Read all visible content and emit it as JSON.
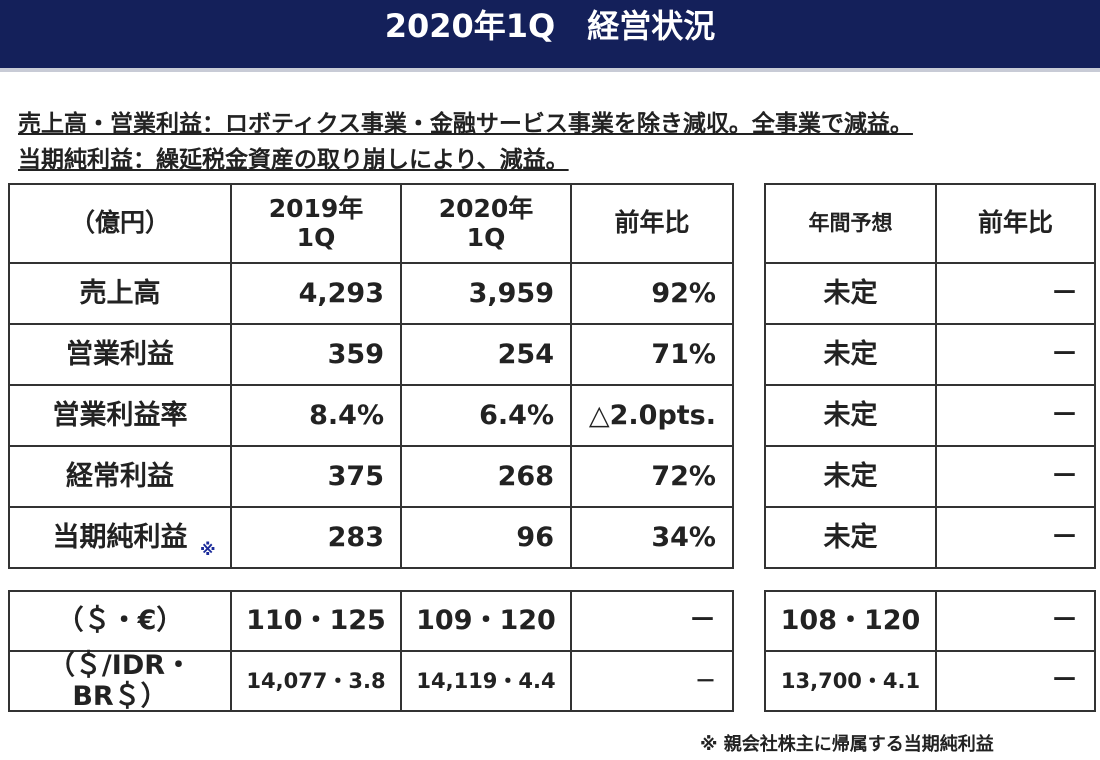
{
  "header": {
    "title": "2020年1Q　経営状況"
  },
  "summary": [
    "売上高・営業利益：ロボティクス事業・金融サービス事業を除き減収。全事業で減益。",
    "当期純利益：繰延税金資産の取り崩しにより、減益。"
  ],
  "main_table": {
    "columns": [
      "（億円）",
      "2019年\n1Q",
      "2020年\n1Q",
      "前年比"
    ],
    "rows": [
      [
        "売上高",
        "4,293",
        "3,959",
        "92%"
      ],
      [
        "営業利益",
        "359",
        "254",
        "71%"
      ],
      [
        "営業利益率",
        "8.4%",
        "6.4%",
        "△2.0pts."
      ],
      [
        "経常利益",
        "375",
        "268",
        "72%"
      ],
      [
        "当期純利益",
        "283",
        "96",
        "34%"
      ]
    ],
    "row_note_mark": "※"
  },
  "forecast_table": {
    "columns": [
      "年間予想",
      "前年比"
    ],
    "rows": [
      [
        "未定",
        "－"
      ],
      [
        "未定",
        "－"
      ],
      [
        "未定",
        "－"
      ],
      [
        "未定",
        "－"
      ],
      [
        "未定",
        "－"
      ]
    ]
  },
  "fx_table": {
    "rows": [
      [
        "（＄・€）",
        "110・125",
        "109・120",
        "－"
      ],
      [
        "（＄/IDR・BR＄）",
        "14,077・3.8",
        "14,119・4.4",
        "－"
      ]
    ]
  },
  "fx_forecast_table": {
    "rows": [
      [
        "108・120",
        "－"
      ],
      [
        "13,700・4.1",
        "－"
      ]
    ]
  },
  "note": "※ 親会社株主に帰属する当期純利益"
}
